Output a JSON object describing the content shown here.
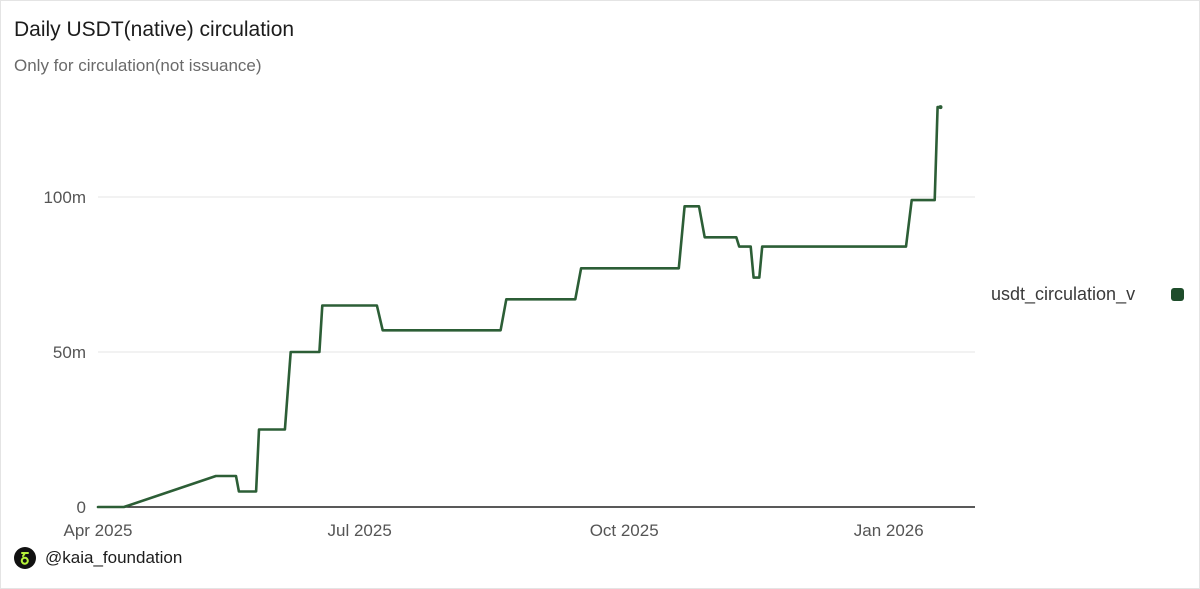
{
  "title": "Daily USDT(native) circulation",
  "subtitle": "Only for circulation(not issuance)",
  "footer": {
    "handle": "@kaia_foundation",
    "icon": "kaia-logo-icon",
    "icon_color": "#b6f23a"
  },
  "legend": {
    "label": "usdt_circulation_v",
    "color": "#1e4d2b"
  },
  "colors": {
    "line": "#2c5e36",
    "grid": "#e6e6e6",
    "axis": "#222222"
  },
  "chart_data": {
    "type": "line",
    "title": "Daily USDT(native) circulation",
    "subtitle": "Only for circulation(not issuance)",
    "xlabel": "",
    "ylabel": "",
    "x_ticks": [
      "Apr 2025",
      "Jul 2025",
      "Oct 2025",
      "Jan 2026"
    ],
    "y_ticks": [
      {
        "value": 0,
        "label": "0"
      },
      {
        "value": 50000000,
        "label": "50m"
      },
      {
        "value": 100000000,
        "label": "100m"
      }
    ],
    "ylim": [
      0,
      130000000
    ],
    "xlim": [
      "2025-04-01",
      "2026-01-31"
    ],
    "grid": true,
    "legend_position": "right",
    "series": [
      {
        "name": "usdt_circulation_v",
        "points": [
          [
            "2025-04-01",
            0
          ],
          [
            "2025-04-10",
            0
          ],
          [
            "2025-05-12",
            10000000
          ],
          [
            "2025-05-19",
            10000000
          ],
          [
            "2025-05-20",
            5000000
          ],
          [
            "2025-05-26",
            5000000
          ],
          [
            "2025-05-27",
            25000000
          ],
          [
            "2025-06-05",
            25000000
          ],
          [
            "2025-06-07",
            50000000
          ],
          [
            "2025-06-17",
            50000000
          ],
          [
            "2025-06-18",
            65000000
          ],
          [
            "2025-07-07",
            65000000
          ],
          [
            "2025-07-09",
            57000000
          ],
          [
            "2025-08-19",
            57000000
          ],
          [
            "2025-08-21",
            67000000
          ],
          [
            "2025-09-14",
            67000000
          ],
          [
            "2025-09-16",
            77000000
          ],
          [
            "2025-10-20",
            77000000
          ],
          [
            "2025-10-22",
            97000000
          ],
          [
            "2025-10-27",
            97000000
          ],
          [
            "2025-10-29",
            87000000
          ],
          [
            "2025-11-09",
            87000000
          ],
          [
            "2025-11-10",
            84000000
          ],
          [
            "2025-11-14",
            84000000
          ],
          [
            "2025-11-15",
            74000000
          ],
          [
            "2025-11-17",
            74000000
          ],
          [
            "2025-11-18",
            84000000
          ],
          [
            "2026-01-07",
            84000000
          ],
          [
            "2026-01-09",
            99000000
          ],
          [
            "2026-01-17",
            99000000
          ],
          [
            "2026-01-18",
            129000000
          ],
          [
            "2026-01-19",
            129000000
          ]
        ]
      }
    ]
  }
}
